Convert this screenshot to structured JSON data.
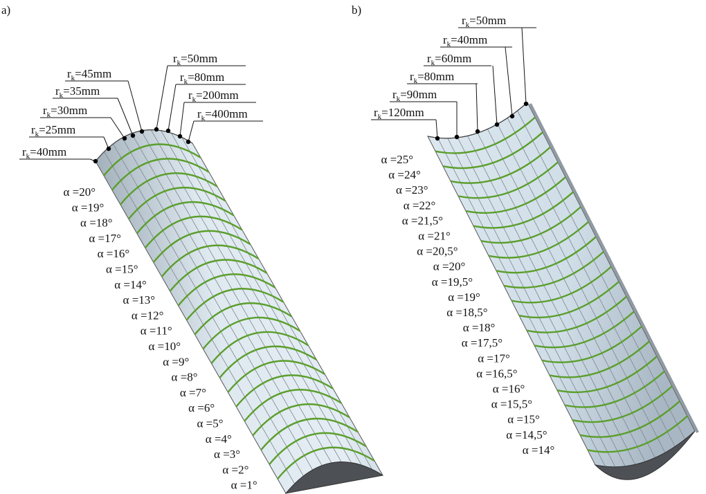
{
  "panels": [
    {
      "label": "a)",
      "radius_labels": [
        {
          "symbol": "r",
          "subscript": "k",
          "text": "=40mm"
        },
        {
          "symbol": "r",
          "subscript": "k",
          "text": "=25mm"
        },
        {
          "symbol": "r",
          "subscript": "k",
          "text": "=30mm"
        },
        {
          "symbol": "r",
          "subscript": "k",
          "text": "=35mm"
        },
        {
          "symbol": "r",
          "subscript": "k",
          "text": "=45mm"
        },
        {
          "symbol": "r",
          "subscript": "k",
          "text": "=50mm"
        },
        {
          "symbol": "r",
          "subscript": "k",
          "text": "=80mm"
        },
        {
          "symbol": "r",
          "subscript": "k",
          "text": "=200mm"
        },
        {
          "symbol": "r",
          "subscript": "k",
          "text": "=400mm"
        }
      ],
      "angle_labels": [
        "α =20°",
        "α =19°",
        "α =18°",
        "α =17°",
        "α =16°",
        "α =15°",
        "α =14°",
        "α =13°",
        "α =12°",
        "α =11°",
        "α =10°",
        "α =9°",
        "α =8°",
        "α =7°",
        "α =6°",
        "α =5°",
        "α =4°",
        "α =3°",
        "α =2°",
        "α =1°"
      ]
    },
    {
      "label": "b)",
      "radius_labels": [
        {
          "symbol": "r",
          "subscript": "k",
          "text": "=50mm"
        },
        {
          "symbol": "r",
          "subscript": "k",
          "text": "=40mm"
        },
        {
          "symbol": "r",
          "subscript": "k",
          "text": "=60mm"
        },
        {
          "symbol": "r",
          "subscript": "k",
          "text": "=80mm"
        },
        {
          "symbol": "r",
          "subscript": "k",
          "text": "=90mm"
        },
        {
          "symbol": "r",
          "subscript": "k",
          "text": "=120mm"
        }
      ],
      "angle_labels": [
        "α =25°",
        "α =24°",
        "α =23°",
        "α =22°",
        "α =21,5°",
        "α =21°",
        "α =20,5°",
        "α =20°",
        "α =19,5°",
        "α =19°",
        "α =18,5°",
        "α =18°",
        "α =17,5°",
        "α =17°",
        "α =16,5°",
        "α =16°",
        "α =15,5°",
        "α =15°",
        "α =14,5°",
        "α =14°"
      ]
    }
  ]
}
